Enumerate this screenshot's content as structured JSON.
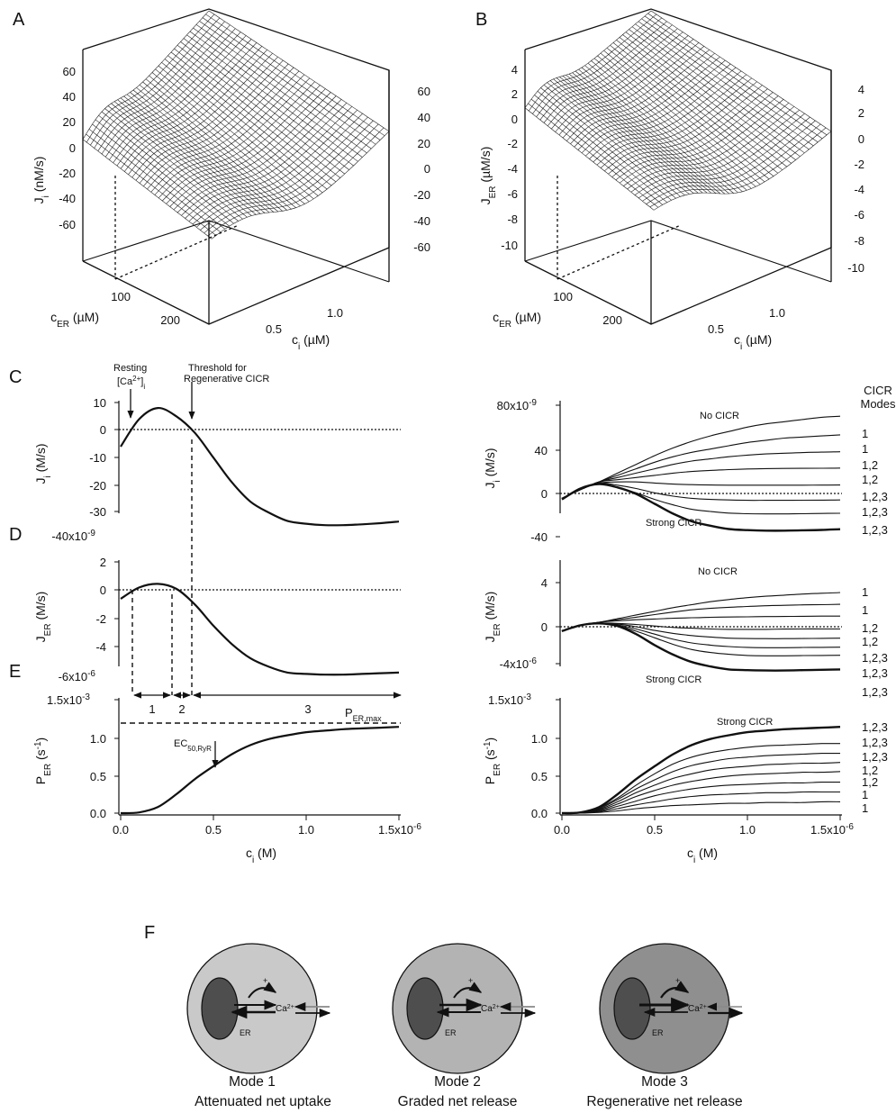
{
  "panel_letters": {
    "A": "A",
    "B": "B",
    "C": "C",
    "D": "D",
    "E": "E",
    "F": "F"
  },
  "surface_A": {
    "zlabel": "J",
    "zlabel_sub": "i",
    "zlabel_unit": " (nM/s)",
    "z_ticks_left": [
      "60",
      "40",
      "20",
      "0",
      "-20",
      "-40",
      "-60"
    ],
    "z_ticks_right": [
      "60",
      "40",
      "20",
      "0",
      "-20",
      "-40",
      "-60"
    ],
    "cer_ticks": [
      "100",
      "200"
    ],
    "ci_ticks": [
      "0.5",
      "1.0"
    ],
    "cer_label": "c",
    "cer_sub": "ER",
    "cer_unit": " (µM)",
    "ci_label": "c",
    "ci_sub": "i",
    "ci_unit": " (µM)"
  },
  "surface_B": {
    "zlabel": "J",
    "zlabel_sub": "ER",
    "zlabel_unit": " (µM/s)",
    "z_ticks_left": [
      "4",
      "2",
      "0",
      "-2",
      "-4",
      "-6",
      "-8",
      "-10"
    ],
    "z_ticks_right": [
      "4",
      "2",
      "0",
      "-2",
      "-4",
      "-6",
      "-8",
      "-10"
    ],
    "cer_ticks": [
      "100",
      "200"
    ],
    "ci_ticks": [
      "0.5",
      "1.0"
    ],
    "cer_label": "c",
    "cer_sub": "ER",
    "cer_unit": " (µM)",
    "ci_label": "c",
    "ci_sub": "i",
    "ci_unit": " (µM)"
  },
  "panel_C": {
    "ylabel": "J",
    "ylabel_sub": "i",
    "ylabel_unit": " (M/s)",
    "yticks": [
      "10",
      "0",
      "-10",
      "-20",
      "-30"
    ],
    "y_bottom_label": "-40x10",
    "y_bottom_exp": "-9",
    "annot_resting_1": "Resting",
    "annot_resting_2": "[Ca",
    "annot_resting_sup": "2+",
    "annot_resting_3": "]",
    "annot_resting_sub": "i",
    "annot_threshold_1": "Threshold for",
    "annot_threshold_2": "Regenerative CICR"
  },
  "panel_D": {
    "ylabel": "J",
    "ylabel_sub": "ER",
    "ylabel_unit": " (M/s)",
    "yticks": [
      "2",
      "0",
      "-2",
      "-4"
    ],
    "y_bottom_label": "-6x10",
    "y_bottom_exp": "-6",
    "region_labels": [
      "1",
      "2",
      "3"
    ]
  },
  "panel_E": {
    "ylabel": "P",
    "ylabel_sub": "ER",
    "ylabel_unit": " (s",
    "ylabel_unit_sup": "-1",
    "ylabel_unit_end": ")",
    "yticks": [
      "1.0",
      "0.5",
      "0.0"
    ],
    "y_top_label": "1.5x10",
    "y_top_exp": "-3",
    "pmax_label": "P",
    "pmax_sub": "ER,max",
    "ec50_label": "EC",
    "ec50_sub": "50,RyR",
    "xticks": [
      "0.0",
      "0.5",
      "1.0"
    ],
    "x_last": "1.5x10",
    "x_exp": "-6",
    "xlabel": "c",
    "xlabel_sub": "i",
    "xlabel_unit": " (M)"
  },
  "panel_C_right": {
    "ylabel": "J",
    "ylabel_sub": "i",
    "ylabel_unit": " (M/s)",
    "y_top_label": "80x10",
    "y_top_exp": "-9",
    "yticks": [
      "40",
      "0",
      "-40"
    ],
    "header_1": "CICR",
    "header_2": "Modes",
    "no_cicr": "No CICR",
    "strong_cicr": "Strong CICR",
    "mode_labels": [
      "1",
      "1",
      "1,2",
      "1,2",
      "1,2,3",
      "1,2,3",
      "1,2,3"
    ]
  },
  "panel_D_right": {
    "ylabel": "J",
    "ylabel_sub": "ER",
    "ylabel_unit": " (M/s)",
    "yticks": [
      "4",
      "0"
    ],
    "y_bottom_label": "-4x10",
    "y_bottom_exp": "-6",
    "no_cicr": "No CICR",
    "strong_cicr": "Strong CICR",
    "mode_labels": [
      "1",
      "1",
      "1,2",
      "1,2",
      "1,2,3",
      "1,2,3",
      "1,2,3"
    ]
  },
  "panel_E_right": {
    "ylabel": "P",
    "ylabel_sub": "ER",
    "ylabel_unit": " (s",
    "ylabel_unit_sup": "-1",
    "ylabel_unit_end": ")",
    "y_top_label": "1.5x10",
    "y_top_exp": "-3",
    "yticks": [
      "1.0",
      "0.5",
      "0.0"
    ],
    "strong_cicr": "Strong CICR",
    "mode_labels": [
      "1,2,3",
      "1,2,3",
      "1,2,3",
      "1,2",
      "1,2",
      "1",
      "1"
    ],
    "xticks": [
      "0.0",
      "0.5",
      "1.0"
    ],
    "x_last": "1.5x10",
    "x_exp": "-6",
    "xlabel": "c",
    "xlabel_sub": "i",
    "xlabel_unit": " (M)"
  },
  "panel_F": {
    "cells": [
      {
        "er": "ER",
        "ca": "Ca",
        "ca_sup": "2+",
        "plus": "+",
        "mode": "Mode 1",
        "caption": "Attenuated net uptake",
        "fill": "#c9c9c9"
      },
      {
        "er": "ER",
        "ca": "Ca",
        "ca_sup": "2+",
        "plus": "+",
        "mode": "Mode 2",
        "caption": "Graded net release",
        "fill": "#b3b3b3"
      },
      {
        "er": "ER",
        "ca": "Ca",
        "ca_sup": "2+",
        "plus": "+",
        "mode": "Mode 3",
        "caption": "Regenerative net release",
        "fill": "#8f8f8f"
      }
    ]
  },
  "chart_data": [
    {
      "type": "line",
      "panel": "C",
      "x": [
        0.0,
        0.1,
        0.2,
        0.3,
        0.4,
        0.5,
        0.6,
        0.7,
        0.8,
        0.9,
        1.0,
        1.1,
        1.2,
        1.3,
        1.4,
        1.5
      ],
      "series": [
        {
          "values": [
            -6,
            4,
            8,
            5,
            -1,
            -10,
            -19,
            -26,
            -30,
            -33,
            -34,
            -34.5,
            -34.5,
            -34.2,
            -33.8,
            -33.2
          ]
        }
      ],
      "x_unit": "µM",
      "y_unit": "nM/s",
      "ylim": [
        -40,
        10
      ],
      "xlim": [
        0,
        1.5
      ],
      "resting_ci": 0.05,
      "threshold_ci": 0.38
    },
    {
      "type": "line",
      "panel": "D",
      "x": [
        0.0,
        0.1,
        0.2,
        0.3,
        0.4,
        0.5,
        0.6,
        0.7,
        0.8,
        0.9,
        1.0,
        1.1,
        1.2,
        1.3,
        1.4,
        1.5
      ],
      "series": [
        {
          "values": [
            -0.6,
            0.2,
            0.45,
            0.1,
            -1.0,
            -2.5,
            -3.8,
            -4.8,
            -5.4,
            -5.8,
            -5.9,
            -5.95,
            -5.95,
            -5.9,
            -5.85,
            -5.8
          ]
        }
      ],
      "x_unit": "µM",
      "y_unit": "µM/s",
      "ylim": [
        -6,
        2
      ],
      "xlim": [
        0,
        1.5
      ],
      "region_bounds": [
        0.07,
        0.28,
        0.38,
        1.5
      ]
    },
    {
      "type": "line",
      "panel": "E",
      "x": [
        0.0,
        0.1,
        0.2,
        0.3,
        0.4,
        0.5,
        0.6,
        0.7,
        0.8,
        0.9,
        1.0,
        1.1,
        1.2,
        1.3,
        1.4,
        1.5
      ],
      "series": [
        {
          "values": [
            0.0,
            0.01,
            0.08,
            0.25,
            0.45,
            0.62,
            0.78,
            0.9,
            0.98,
            1.03,
            1.07,
            1.09,
            1.11,
            1.12,
            1.13,
            1.14
          ]
        }
      ],
      "x_unit": "µM",
      "y_unit": "1e-3 /s",
      "ylim": [
        0,
        1.5
      ],
      "xlim": [
        0,
        1.5
      ],
      "pmax": 1.2,
      "ec50": 0.5
    },
    {
      "type": "line",
      "panel": "C-right",
      "x": [
        0.0,
        0.1,
        0.2,
        0.3,
        0.4,
        0.5,
        0.6,
        0.7,
        0.8,
        0.9,
        1.0,
        1.1,
        1.2,
        1.3,
        1.4,
        1.5
      ],
      "series": [
        {
          "values": [
            -5,
            3,
            10,
            18,
            26,
            34,
            41,
            47,
            52,
            56,
            60,
            63,
            65,
            67,
            69,
            70
          ]
        },
        {
          "values": [
            -5,
            3,
            10,
            16,
            22,
            28,
            33,
            37,
            40,
            43,
            46,
            48,
            50,
            51,
            52,
            53
          ]
        },
        {
          "values": [
            -5,
            3,
            10,
            14,
            18,
            22,
            26,
            29,
            31,
            33,
            34.5,
            35.5,
            36.2,
            36.8,
            37.2,
            37.5
          ]
        },
        {
          "values": [
            -5,
            3,
            10,
            12,
            14,
            16,
            18,
            19.5,
            20.5,
            21.2,
            21.8,
            22.1,
            22.3,
            22.4,
            22.5,
            22.6
          ]
        },
        {
          "values": [
            -5,
            3,
            9,
            10,
            10,
            9,
            8,
            7.5,
            7.2,
            7.0,
            7.0,
            7.0,
            7.0,
            7.0,
            7.1,
            7.2
          ]
        },
        {
          "values": [
            -5,
            3,
            9,
            7,
            4,
            0,
            -3,
            -5,
            -6,
            -6.5,
            -6.8,
            -6.8,
            -6.8,
            -6.7,
            -6.6,
            -6.5
          ]
        },
        {
          "values": [
            -5,
            3,
            8.5,
            5,
            0,
            -6,
            -11,
            -15,
            -17,
            -18.5,
            -19,
            -19.2,
            -19.2,
            -19,
            -18.8,
            -18.6
          ]
        },
        {
          "values": [
            -6,
            4,
            8,
            5,
            -1,
            -10,
            -19,
            -26,
            -30,
            -33,
            -34,
            -34.5,
            -34.5,
            -34.2,
            -33.8,
            -33.2
          ]
        }
      ],
      "x_unit": "µM",
      "y_unit": "nM/s",
      "ylim": [
        -40,
        80
      ],
      "xlim": [
        0,
        1.5
      ]
    },
    {
      "type": "line",
      "panel": "D-right",
      "x": [
        0.0,
        0.1,
        0.2,
        0.3,
        0.4,
        0.5,
        0.6,
        0.7,
        0.8,
        0.9,
        1.0,
        1.1,
        1.2,
        1.3,
        1.4,
        1.5
      ],
      "series": [
        {
          "values": [
            -0.6,
            0.2,
            0.6,
            1.1,
            1.6,
            2.1,
            2.6,
            3.0,
            3.4,
            3.7,
            3.95,
            4.15,
            4.3,
            4.45,
            4.55,
            4.65
          ]
        },
        {
          "values": [
            -0.6,
            0.2,
            0.6,
            0.95,
            1.3,
            1.65,
            2.0,
            2.3,
            2.5,
            2.65,
            2.75,
            2.85,
            2.92,
            2.97,
            3.0,
            3.05
          ]
        },
        {
          "values": [
            -0.6,
            0.2,
            0.6,
            0.8,
            0.95,
            1.05,
            1.15,
            1.22,
            1.28,
            1.32,
            1.35,
            1.38,
            1.4,
            1.42,
            1.44,
            1.45
          ]
        },
        {
          "values": [
            -0.6,
            0.2,
            0.5,
            0.45,
            0.3,
            0.1,
            -0.1,
            -0.2,
            -0.3,
            -0.35,
            -0.35,
            -0.35,
            -0.32,
            -0.3,
            -0.3,
            -0.3
          ]
        },
        {
          "values": [
            -0.6,
            0.2,
            0.5,
            0.35,
            0.0,
            -0.5,
            -0.9,
            -1.2,
            -1.4,
            -1.55,
            -1.6,
            -1.62,
            -1.62,
            -1.6,
            -1.58,
            -1.55
          ]
        },
        {
          "values": [
            -0.6,
            0.2,
            0.5,
            0.25,
            -0.3,
            -1.0,
            -1.7,
            -2.2,
            -2.5,
            -2.7,
            -2.8,
            -2.85,
            -2.85,
            -2.82,
            -2.8,
            -2.78
          ]
        },
        {
          "values": [
            -0.6,
            0.2,
            0.48,
            0.18,
            -0.6,
            -1.5,
            -2.4,
            -3.1,
            -3.5,
            -3.75,
            -3.9,
            -3.95,
            -3.95,
            -3.92,
            -3.9,
            -3.88
          ]
        },
        {
          "values": [
            -0.6,
            0.2,
            0.45,
            0.1,
            -1.0,
            -2.5,
            -3.8,
            -4.8,
            -5.4,
            -5.8,
            -5.9,
            -5.95,
            -5.95,
            -5.9,
            -5.85,
            -5.8
          ]
        }
      ],
      "x_unit": "µM",
      "y_unit": "µM/s",
      "ylim": [
        -6,
        6
      ],
      "xlim": [
        0,
        1.5
      ]
    },
    {
      "type": "line",
      "panel": "E-right",
      "x": [
        0.0,
        0.1,
        0.2,
        0.3,
        0.4,
        0.5,
        0.6,
        0.7,
        0.8,
        0.9,
        1.0,
        1.1,
        1.2,
        1.3,
        1.4,
        1.5
      ],
      "series": [
        {
          "values": [
            0.0,
            0.01,
            0.08,
            0.25,
            0.45,
            0.62,
            0.78,
            0.9,
            0.98,
            1.03,
            1.07,
            1.09,
            1.11,
            1.12,
            1.13,
            1.14
          ]
        },
        {
          "values": [
            0.0,
            0.01,
            0.07,
            0.2,
            0.37,
            0.52,
            0.65,
            0.74,
            0.8,
            0.84,
            0.87,
            0.89,
            0.9,
            0.91,
            0.92,
            0.92
          ]
        },
        {
          "values": [
            0.0,
            0.01,
            0.06,
            0.18,
            0.32,
            0.44,
            0.55,
            0.63,
            0.68,
            0.72,
            0.74,
            0.76,
            0.77,
            0.78,
            0.79,
            0.79
          ]
        },
        {
          "values": [
            0.0,
            0.01,
            0.05,
            0.15,
            0.27,
            0.37,
            0.46,
            0.52,
            0.57,
            0.6,
            0.62,
            0.64,
            0.65,
            0.66,
            0.66,
            0.67
          ]
        },
        {
          "values": [
            0.0,
            0.01,
            0.04,
            0.12,
            0.22,
            0.3,
            0.37,
            0.42,
            0.46,
            0.49,
            0.51,
            0.52,
            0.53,
            0.54,
            0.54,
            0.55
          ]
        },
        {
          "values": [
            0.0,
            0.01,
            0.03,
            0.09,
            0.16,
            0.23,
            0.28,
            0.32,
            0.35,
            0.37,
            0.38,
            0.39,
            0.4,
            0.4,
            0.41,
            0.41
          ]
        },
        {
          "values": [
            0.0,
            0.01,
            0.02,
            0.06,
            0.11,
            0.15,
            0.19,
            0.22,
            0.24,
            0.25,
            0.26,
            0.27,
            0.27,
            0.28,
            0.28,
            0.28
          ]
        },
        {
          "values": [
            0.0,
            0.0,
            0.01,
            0.03,
            0.06,
            0.08,
            0.1,
            0.11,
            0.12,
            0.13,
            0.13,
            0.14,
            0.14,
            0.14,
            0.15,
            0.15
          ]
        }
      ],
      "x_unit": "µM",
      "y_unit": "1e-3 /s",
      "ylim": [
        0,
        1.5
      ],
      "xlim": [
        0,
        1.5
      ]
    }
  ]
}
